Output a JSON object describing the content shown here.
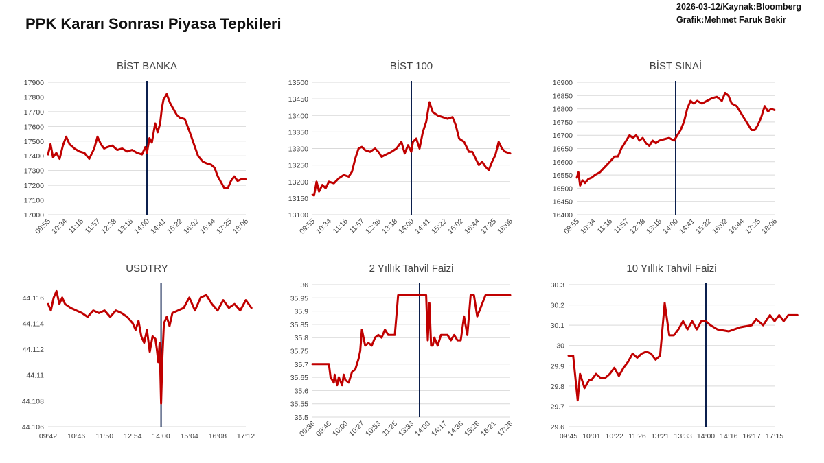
{
  "page": {
    "title": "PPK Kararı Sonrası Piyasa Tepkileri",
    "meta_line1": "2026-03-12/Kaynak:Bloomberg",
    "meta_line2": "Grafik:Mehmet Faruk Bekir"
  },
  "colors": {
    "series": "#c00000",
    "event_line": "#0b1f4d",
    "grid": "#d9d9d9",
    "text": "#404040"
  },
  "chart_data": [
    {
      "id": "bist-banka",
      "type": "line",
      "title": "BİST BANKA",
      "x_ticks": [
        "09:55",
        "10:34",
        "11:16",
        "11:57",
        "12:38",
        "13:18",
        "14:00",
        "14:41",
        "15:22",
        "16:02",
        "16:44",
        "17:25",
        "18:06"
      ],
      "x_rotated": true,
      "y_ticks": [
        17000,
        17100,
        17200,
        17300,
        17400,
        17500,
        17600,
        17700,
        17800,
        17900
      ],
      "ylim": [
        17000,
        17900
      ],
      "event_x": 6,
      "grid": true,
      "series": [
        {
          "x": [
            0,
            0.15,
            0.3,
            0.5,
            0.7,
            0.9,
            1.1,
            1.3,
            1.6,
            1.9,
            2.2,
            2.5,
            2.8,
            3.0,
            3.2,
            3.4,
            3.6,
            3.9,
            4.2,
            4.5,
            4.8,
            5.1,
            5.4,
            5.7,
            5.9,
            6.0,
            6.15,
            6.3,
            6.5,
            6.65,
            6.8,
            6.9,
            7.0,
            7.2,
            7.4,
            7.6,
            7.8,
            8.0,
            8.3,
            8.6,
            8.85,
            9.1,
            9.4,
            9.6,
            9.9,
            10.1,
            10.3,
            10.5,
            10.7,
            10.9,
            11.1,
            11.3,
            11.5,
            11.7,
            12.0
          ],
          "y": [
            17410,
            17480,
            17390,
            17420,
            17380,
            17470,
            17530,
            17480,
            17450,
            17430,
            17420,
            17380,
            17450,
            17530,
            17480,
            17450,
            17460,
            17470,
            17440,
            17450,
            17430,
            17440,
            17420,
            17410,
            17460,
            17420,
            17520,
            17490,
            17620,
            17560,
            17620,
            17720,
            17780,
            17820,
            17760,
            17720,
            17680,
            17660,
            17650,
            17560,
            17480,
            17400,
            17360,
            17350,
            17340,
            17320,
            17260,
            17220,
            17180,
            17180,
            17230,
            17260,
            17230,
            17240,
            17240
          ]
        }
      ]
    },
    {
      "id": "bist-100",
      "type": "line",
      "title": "BİST 100",
      "x_ticks": [
        "09:55",
        "10:34",
        "11:16",
        "11:57",
        "12:38",
        "13:18",
        "14:00",
        "14:41",
        "15:22",
        "16:02",
        "16:44",
        "17:25",
        "18:06"
      ],
      "x_rotated": true,
      "y_ticks": [
        13100,
        13150,
        13200,
        13250,
        13300,
        13350,
        13400,
        13450,
        13500
      ],
      "ylim": [
        13100,
        13500
      ],
      "event_x": 6,
      "grid": true,
      "series": [
        {
          "x": [
            0,
            0.1,
            0.25,
            0.4,
            0.6,
            0.8,
            1.0,
            1.3,
            1.6,
            1.9,
            2.2,
            2.4,
            2.6,
            2.8,
            3.0,
            3.2,
            3.5,
            3.8,
            4.0,
            4.2,
            4.4,
            4.6,
            4.8,
            5.1,
            5.4,
            5.6,
            5.8,
            6.0,
            6.1,
            6.3,
            6.5,
            6.7,
            6.9,
            7.1,
            7.3,
            7.6,
            7.9,
            8.2,
            8.5,
            8.7,
            8.9,
            9.2,
            9.5,
            9.7,
            9.9,
            10.1,
            10.3,
            10.5,
            10.7,
            10.9,
            11.1,
            11.3,
            11.5,
            11.7,
            12.0
          ],
          "y": [
            13160,
            13158,
            13200,
            13170,
            13190,
            13180,
            13200,
            13195,
            13210,
            13220,
            13215,
            13230,
            13270,
            13300,
            13305,
            13295,
            13290,
            13300,
            13290,
            13275,
            13280,
            13285,
            13290,
            13300,
            13320,
            13285,
            13310,
            13290,
            13320,
            13330,
            13300,
            13350,
            13380,
            13440,
            13410,
            13400,
            13395,
            13390,
            13395,
            13370,
            13330,
            13320,
            13290,
            13290,
            13270,
            13250,
            13260,
            13245,
            13235,
            13260,
            13280,
            13320,
            13300,
            13290,
            13285
          ]
        }
      ]
    },
    {
      "id": "bist-sinai",
      "type": "line",
      "title": "BİST SINAİ",
      "x_ticks": [
        "09:55",
        "10:34",
        "11:16",
        "11:57",
        "12:38",
        "13:18",
        "14:00",
        "14:41",
        "15:22",
        "16:02",
        "16:44",
        "17:25",
        "18:06"
      ],
      "x_rotated": true,
      "y_ticks": [
        16400,
        16450,
        16500,
        16550,
        16600,
        16650,
        16700,
        16750,
        16800,
        16850,
        16900
      ],
      "ylim": [
        16400,
        16900
      ],
      "event_x": 6,
      "grid": true,
      "series": [
        {
          "x": [
            0,
            0.1,
            0.2,
            0.35,
            0.5,
            0.7,
            0.9,
            1.1,
            1.4,
            1.7,
            2.0,
            2.3,
            2.5,
            2.7,
            3.0,
            3.2,
            3.4,
            3.6,
            3.8,
            4.0,
            4.2,
            4.4,
            4.6,
            4.8,
            5.0,
            5.3,
            5.6,
            5.9,
            6.1,
            6.3,
            6.5,
            6.7,
            6.9,
            7.1,
            7.3,
            7.6,
            7.9,
            8.2,
            8.5,
            8.8,
            9.0,
            9.2,
            9.4,
            9.7,
            10.0,
            10.2,
            10.4,
            10.6,
            10.8,
            11.0,
            11.2,
            11.4,
            11.6,
            11.8,
            12.0
          ],
          "y": [
            16540,
            16560,
            16510,
            16530,
            16520,
            16535,
            16540,
            16550,
            16560,
            16580,
            16600,
            16620,
            16620,
            16650,
            16680,
            16700,
            16690,
            16700,
            16680,
            16690,
            16670,
            16660,
            16680,
            16670,
            16680,
            16685,
            16690,
            16680,
            16700,
            16720,
            16750,
            16800,
            16830,
            16820,
            16830,
            16820,
            16830,
            16840,
            16845,
            16830,
            16860,
            16850,
            16820,
            16810,
            16780,
            16760,
            16740,
            16720,
            16720,
            16740,
            16770,
            16810,
            16790,
            16800,
            16795
          ]
        }
      ]
    },
    {
      "id": "usdtry",
      "type": "line",
      "title": "USDTRY",
      "x_ticks": [
        "09:42",
        "10:46",
        "11:50",
        "12:54",
        "14:00",
        "15:04",
        "16:08",
        "17:12"
      ],
      "x_rotated": false,
      "y_ticks": [
        "44.106",
        "44.108",
        "44.11",
        "44.112",
        "44.114",
        "44.116"
      ],
      "ylim": [
        44.106,
        44.117
      ],
      "event_x": 4,
      "grid": false,
      "series": [
        {
          "x": [
            0,
            0.1,
            0.2,
            0.3,
            0.4,
            0.5,
            0.6,
            0.8,
            1.0,
            1.2,
            1.4,
            1.6,
            1.8,
            2.0,
            2.2,
            2.4,
            2.6,
            2.8,
            3.0,
            3.1,
            3.2,
            3.3,
            3.4,
            3.5,
            3.6,
            3.7,
            3.8,
            3.85,
            3.9,
            3.95,
            4.0,
            4.05,
            4.1,
            4.2,
            4.3,
            4.4,
            4.6,
            4.8,
            5.0,
            5.2,
            5.4,
            5.6,
            5.8,
            6.0,
            6.2,
            6.4,
            6.6,
            6.8,
            7.0,
            7.2
          ],
          "y": [
            44.1155,
            44.115,
            44.116,
            44.1165,
            44.1155,
            44.116,
            44.1155,
            44.1152,
            44.115,
            44.1148,
            44.1145,
            44.115,
            44.1148,
            44.115,
            44.1145,
            44.115,
            44.1148,
            44.1145,
            44.114,
            44.1135,
            44.1142,
            44.113,
            44.1125,
            44.1135,
            44.1118,
            44.113,
            44.1128,
            44.112,
            44.111,
            44.1125,
            44.1078,
            44.1115,
            44.114,
            44.1145,
            44.1138,
            44.1148,
            44.115,
            44.1152,
            44.116,
            44.115,
            44.116,
            44.1162,
            44.1155,
            44.115,
            44.1158,
            44.1152,
            44.1155,
            44.115,
            44.1158,
            44.1152
          ]
        }
      ]
    },
    {
      "id": "tahvil-2y",
      "type": "line",
      "title": "2 Yıllık Tahvil Faizi",
      "x_ticks": [
        "09:38",
        "09:46",
        "10:00",
        "10:27",
        "10:53",
        "11:25",
        "13:33",
        "14:00",
        "14:17",
        "14:36",
        "15:28",
        "16:21",
        "17:28"
      ],
      "x_rotated": true,
      "y_ticks": [
        "35.5",
        "35.55",
        "35.6",
        "35.65",
        "35.7",
        "35.75",
        "35.8",
        "35.85",
        "35.9",
        "35.95",
        "36"
      ],
      "ylim": [
        35.5,
        36.0
      ],
      "event_x": 6.5,
      "grid": true,
      "series": [
        {
          "x": [
            0,
            0.5,
            1.0,
            1.1,
            1.3,
            1.35,
            1.5,
            1.6,
            1.8,
            1.9,
            2.0,
            2.2,
            2.4,
            2.6,
            2.8,
            2.9,
            3.0,
            3.2,
            3.4,
            3.6,
            3.8,
            4.0,
            4.2,
            4.4,
            4.6,
            4.8,
            5.0,
            5.2,
            5.4,
            5.6,
            5.8,
            6.0,
            6.2,
            6.5,
            6.9,
            7.0,
            7.1,
            7.2,
            7.3,
            7.4,
            7.6,
            7.8,
            8.0,
            8.2,
            8.4,
            8.6,
            8.8,
            9.0,
            9.2,
            9.4,
            9.6,
            9.8,
            10.0,
            10.5,
            11.0,
            11.5,
            12.0
          ],
          "y": [
            35.7,
            35.7,
            35.7,
            35.65,
            35.63,
            35.66,
            35.62,
            35.65,
            35.62,
            35.66,
            35.64,
            35.63,
            35.67,
            35.68,
            35.72,
            35.75,
            35.83,
            35.77,
            35.78,
            35.77,
            35.8,
            35.81,
            35.8,
            35.83,
            35.81,
            35.81,
            35.81,
            35.96,
            35.96,
            35.96,
            35.96,
            35.96,
            35.96,
            35.96,
            35.96,
            35.79,
            35.93,
            35.77,
            35.77,
            35.8,
            35.77,
            35.81,
            35.81,
            35.81,
            35.79,
            35.81,
            35.79,
            35.79,
            35.88,
            35.81,
            35.96,
            35.96,
            35.88,
            35.96,
            35.96,
            35.96,
            35.96
          ]
        }
      ]
    },
    {
      "id": "tahvil-10y",
      "type": "line",
      "title": "10 Yıllık Tahvil Faizi",
      "x_ticks": [
        "09:45",
        "10:01",
        "10:22",
        "11:26",
        "13:21",
        "13:33",
        "14:00",
        "14:16",
        "16:17",
        "17:15"
      ],
      "x_rotated": false,
      "y_ticks": [
        "29.6",
        "29.7",
        "29.8",
        "29.9",
        "30",
        "30.1",
        "30.2",
        "30.3"
      ],
      "ylim": [
        29.6,
        30.3
      ],
      "event_x": 6,
      "grid": true,
      "series": [
        {
          "x": [
            0,
            0.2,
            0.4,
            0.5,
            0.7,
            0.9,
            1.0,
            1.2,
            1.4,
            1.6,
            1.8,
            2.0,
            2.2,
            2.4,
            2.6,
            2.8,
            3.0,
            3.2,
            3.4,
            3.6,
            3.8,
            4.0,
            4.2,
            4.4,
            4.6,
            4.8,
            5.0,
            5.2,
            5.4,
            5.6,
            5.8,
            6.0,
            6.2,
            6.5,
            7.0,
            7.5,
            8.0,
            8.2,
            8.5,
            8.8,
            9.0,
            9.2,
            9.4,
            9.6,
            9.8,
            10.0
          ],
          "y": [
            29.95,
            29.95,
            29.73,
            29.86,
            29.79,
            29.83,
            29.83,
            29.86,
            29.84,
            29.84,
            29.86,
            29.89,
            29.85,
            29.89,
            29.92,
            29.96,
            29.94,
            29.96,
            29.97,
            29.96,
            29.93,
            29.95,
            30.21,
            30.05,
            30.05,
            30.08,
            30.12,
            30.08,
            30.12,
            30.08,
            30.12,
            30.12,
            30.1,
            30.08,
            30.07,
            30.09,
            30.1,
            30.13,
            30.1,
            30.15,
            30.12,
            30.15,
            30.12,
            30.15,
            30.15,
            30.15
          ]
        }
      ]
    }
  ]
}
